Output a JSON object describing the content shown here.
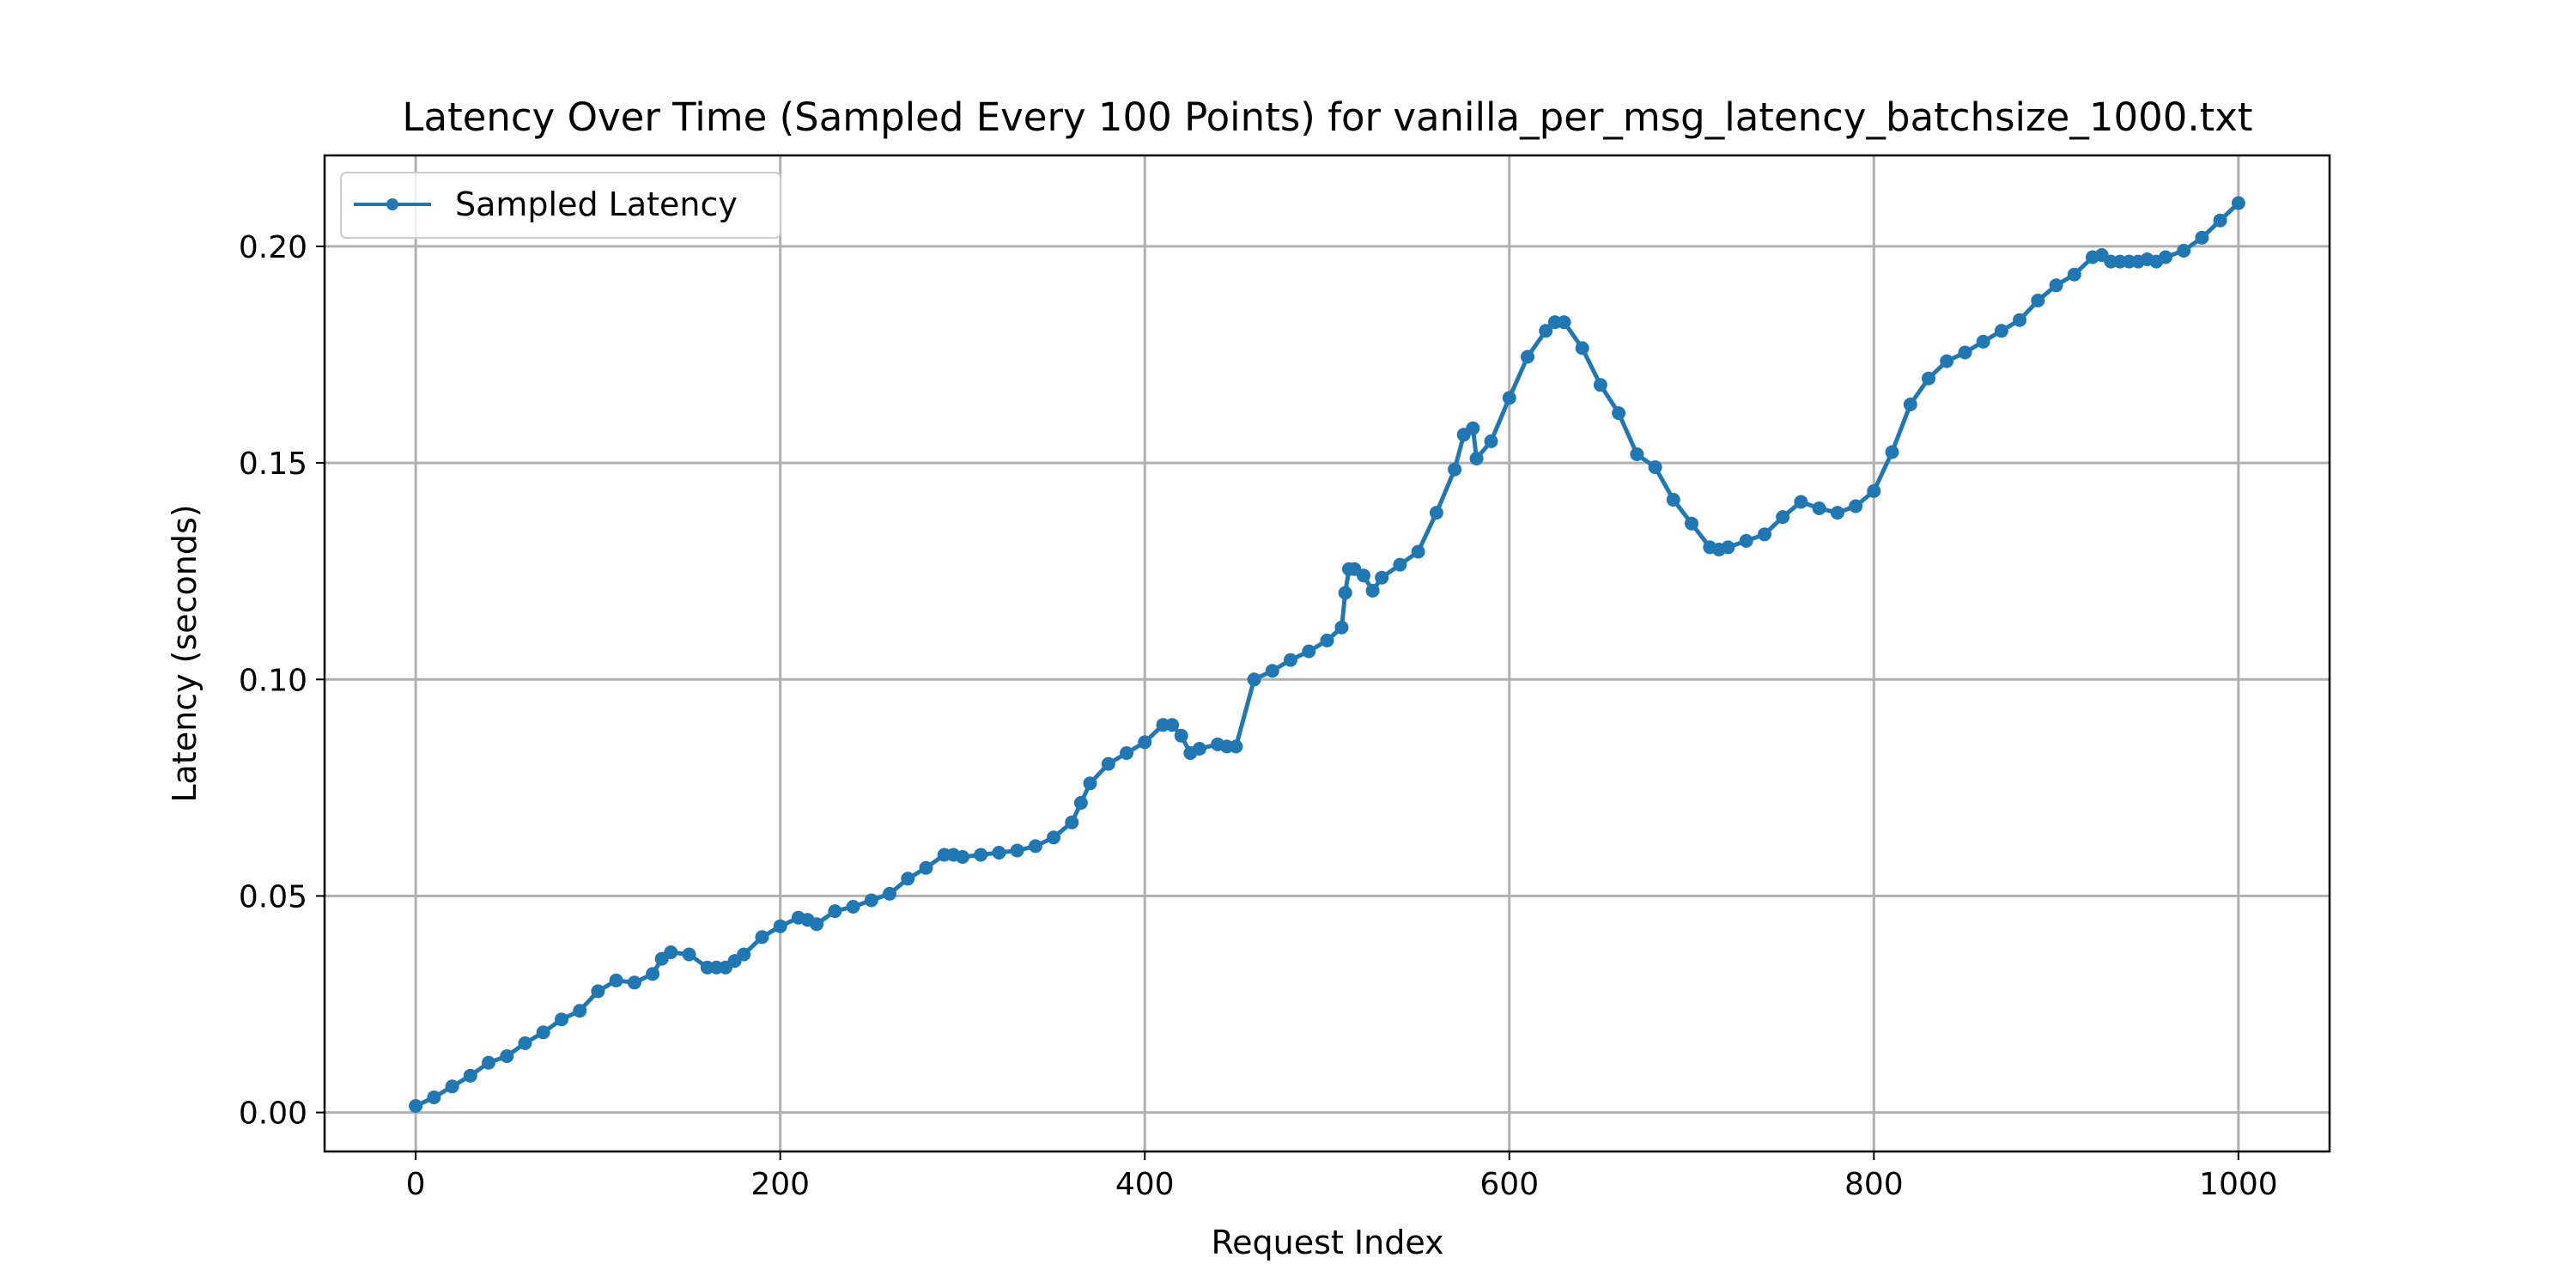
{
  "chart_data": {
    "type": "line",
    "title": "Latency Over Time (Sampled Every 100 Points) for vanilla_per_msg_latency_batchsize_1000.txt",
    "xlabel": "Request Index",
    "ylabel": "Latency (seconds)",
    "xlim": [
      -50,
      1050
    ],
    "ylim": [
      -0.009,
      0.221
    ],
    "xticks": [
      0,
      200,
      400,
      600,
      800,
      1000
    ],
    "xtick_labels": [
      "0",
      "200",
      "400",
      "600",
      "800",
      "1000"
    ],
    "yticks": [
      0.0,
      0.05,
      0.1,
      0.15,
      0.2
    ],
    "ytick_labels": [
      "0.00",
      "0.05",
      "0.10",
      "0.15",
      "0.20"
    ],
    "grid": true,
    "legend": {
      "position": "top-left",
      "entries": [
        "Sampled Latency"
      ]
    },
    "series": [
      {
        "name": "Sampled Latency",
        "color": "#1f77b4",
        "marker": "circle",
        "x": [
          0,
          10,
          20,
          30,
          40,
          50,
          60,
          70,
          80,
          90,
          100,
          110,
          120,
          130,
          135,
          140,
          150,
          160,
          165,
          170,
          175,
          180,
          190,
          200,
          210,
          215,
          220,
          230,
          240,
          250,
          260,
          270,
          280,
          290,
          295,
          300,
          310,
          320,
          330,
          340,
          350,
          360,
          365,
          370,
          380,
          390,
          400,
          410,
          415,
          420,
          425,
          430,
          440,
          445,
          450,
          460,
          470,
          480,
          490,
          500,
          508,
          510,
          512,
          515,
          520,
          525,
          530,
          540,
          550,
          560,
          570,
          575,
          580,
          582,
          590,
          600,
          610,
          620,
          625,
          630,
          640,
          650,
          660,
          670,
          680,
          690,
          700,
          710,
          715,
          720,
          730,
          740,
          750,
          760,
          770,
          780,
          790,
          800,
          810,
          820,
          830,
          840,
          850,
          860,
          870,
          880,
          890,
          900,
          910,
          920,
          925,
          930,
          935,
          940,
          945,
          950,
          955,
          960,
          970,
          980,
          990,
          1000
        ],
        "values": [
          0.0015,
          0.0035,
          0.006,
          0.0085,
          0.0115,
          0.013,
          0.016,
          0.0185,
          0.0215,
          0.0235,
          0.028,
          0.0305,
          0.03,
          0.032,
          0.0355,
          0.037,
          0.0365,
          0.0335,
          0.0335,
          0.0335,
          0.035,
          0.0365,
          0.0405,
          0.043,
          0.045,
          0.0445,
          0.0435,
          0.0465,
          0.0475,
          0.049,
          0.0505,
          0.054,
          0.0565,
          0.0595,
          0.0595,
          0.059,
          0.0595,
          0.06,
          0.0605,
          0.0615,
          0.0635,
          0.067,
          0.0715,
          0.076,
          0.0805,
          0.083,
          0.0855,
          0.0895,
          0.0895,
          0.087,
          0.083,
          0.084,
          0.085,
          0.0845,
          0.0845,
          0.1,
          0.102,
          0.1045,
          0.1065,
          0.109,
          0.112,
          0.12,
          0.1255,
          0.1255,
          0.124,
          0.1205,
          0.1235,
          0.1265,
          0.1295,
          0.1385,
          0.1485,
          0.1565,
          0.158,
          0.151,
          0.155,
          0.165,
          0.1745,
          0.1805,
          0.1825,
          0.1825,
          0.1765,
          0.168,
          0.1615,
          0.152,
          0.149,
          0.1415,
          0.136,
          0.1305,
          0.13,
          0.1305,
          0.132,
          0.1335,
          0.1375,
          0.141,
          0.1395,
          0.1385,
          0.14,
          0.1435,
          0.1525,
          0.1635,
          0.1695,
          0.1735,
          0.1755,
          0.178,
          0.1805,
          0.183,
          0.1875,
          0.191,
          0.1935,
          0.1975,
          0.198,
          0.1965,
          0.1965,
          0.1965,
          0.1965,
          0.197,
          0.1965,
          0.1975,
          0.199,
          0.202,
          0.206,
          0.21
        ]
      }
    ]
  }
}
